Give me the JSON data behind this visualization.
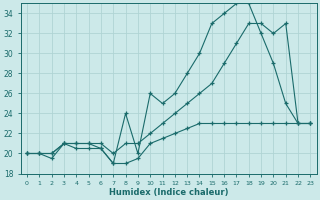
{
  "xlabel": "Humidex (Indice chaleur)",
  "xlim": [
    -0.5,
    23.5
  ],
  "ylim": [
    18,
    35
  ],
  "yticks": [
    18,
    20,
    22,
    24,
    26,
    28,
    30,
    32,
    34
  ],
  "xticks": [
    0,
    1,
    2,
    3,
    4,
    5,
    6,
    7,
    8,
    9,
    10,
    11,
    12,
    13,
    14,
    15,
    16,
    17,
    18,
    19,
    20,
    21,
    22,
    23
  ],
  "bg_color": "#cce9e9",
  "line_color": "#1a6b6b",
  "grid_color": "#b0d4d4",
  "line1_x": [
    0,
    1,
    2,
    3,
    4,
    5,
    6,
    7,
    8,
    9,
    10,
    11,
    12,
    13,
    14,
    15,
    16,
    17,
    18,
    19,
    20,
    21,
    22,
    23
  ],
  "line1_y": [
    20,
    20,
    19.5,
    21,
    21,
    21,
    20.5,
    19,
    19,
    19.5,
    21,
    21.5,
    22,
    22.5,
    23,
    23,
    23,
    23,
    23,
    23,
    23,
    23,
    23,
    23
  ],
  "line2_x": [
    0,
    1,
    2,
    3,
    4,
    5,
    6,
    7,
    8,
    9,
    10,
    11,
    12,
    13,
    14,
    15,
    16,
    17,
    18,
    19,
    20,
    21,
    22,
    23
  ],
  "line2_y": [
    20,
    20,
    20,
    21,
    20.5,
    20.5,
    20.5,
    19,
    24,
    20,
    26,
    25,
    26,
    28,
    30,
    33,
    34,
    35,
    35,
    32,
    29,
    25,
    23,
    23
  ],
  "line3_x": [
    0,
    1,
    2,
    3,
    4,
    5,
    6,
    7,
    8,
    9,
    10,
    11,
    12,
    13,
    14,
    15,
    16,
    17,
    18,
    19,
    20,
    21,
    22,
    23
  ],
  "line3_y": [
    20,
    20,
    20,
    21,
    21,
    21,
    21,
    20,
    21,
    21,
    22,
    23,
    24,
    25,
    26,
    27,
    29,
    31,
    33,
    33,
    32,
    33,
    23,
    23
  ]
}
